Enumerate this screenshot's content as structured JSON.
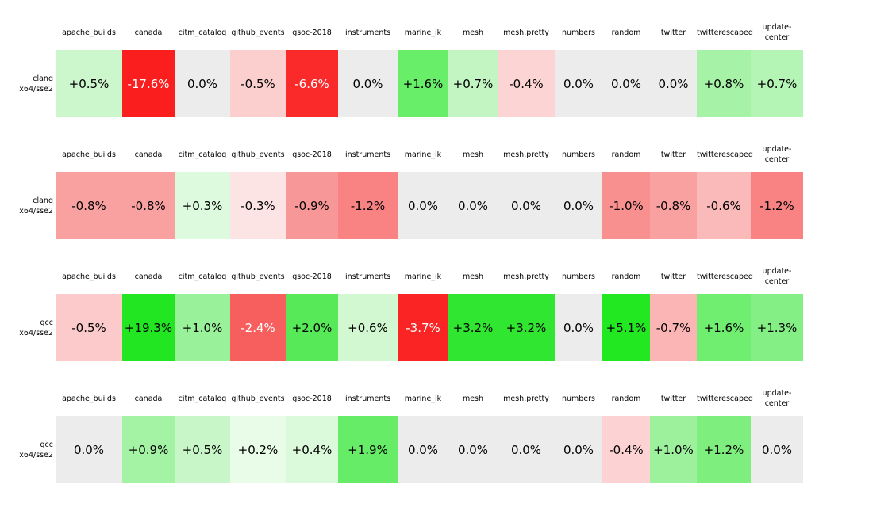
{
  "palette": {
    "background": "#ffffff",
    "zero_cell": "#ececec",
    "text_dark": "#000000",
    "text_light": "#ffffff",
    "max_negative": "#fb1e1e",
    "max_positive": "#22e622"
  },
  "columns_display": [
    "apache_builds",
    "canada",
    "citm_catalog",
    "github_events",
    "gsoc-2018",
    "instruments",
    "marine_ik",
    "mesh",
    "mesh.pretty",
    "numbers",
    "random",
    "twitter",
    "twitterescaped",
    "update-\ncenter"
  ],
  "chart_data": {
    "type": "heatmap",
    "columns": [
      "apache_builds",
      "canada",
      "citm_catalog",
      "github_events",
      "gsoc-2018",
      "instruments",
      "marine_ik",
      "mesh",
      "mesh.pretty",
      "numbers",
      "random",
      "twitter",
      "twitterescaped",
      "update-center"
    ],
    "rows": [
      "clang x64/sse2",
      "clang x64/sse2",
      "gcc x64/sse2",
      "gcc x64/sse2"
    ],
    "values_pct": [
      [
        0.5,
        -17.6,
        0.0,
        -0.5,
        -6.6,
        0.0,
        1.6,
        0.7,
        -0.4,
        0.0,
        0.0,
        0.0,
        0.8,
        0.7
      ],
      [
        -0.8,
        -0.8,
        0.3,
        -0.3,
        -0.9,
        -1.2,
        0.0,
        0.0,
        0.0,
        0.0,
        -1.0,
        -0.8,
        -0.6,
        -1.2
      ],
      [
        -0.5,
        19.3,
        1.0,
        -2.4,
        2.0,
        0.6,
        -3.7,
        3.2,
        3.2,
        0.0,
        5.1,
        -0.7,
        1.6,
        1.3
      ],
      [
        0.0,
        0.9,
        0.5,
        0.2,
        0.4,
        1.9,
        0.0,
        0.0,
        0.0,
        0.0,
        -0.4,
        1.0,
        1.2,
        0.0
      ]
    ],
    "colormap": "diverging red (negative) / gray (zero) / green (positive), per-row intensity",
    "legend": "none",
    "grid": false
  },
  "blocks": [
    {
      "row_label": "clang\nx64/sse2",
      "cells": [
        {
          "text": "+0.5%",
          "bg": "#ccf6cc",
          "fg": "#000000"
        },
        {
          "text": "-17.6%",
          "bg": "#fb1e1e",
          "fg": "#ffffff"
        },
        {
          "text": "0.0%",
          "bg": "#ececec",
          "fg": "#000000"
        },
        {
          "text": "-0.5%",
          "bg": "#fccfcf",
          "fg": "#000000"
        },
        {
          "text": "-6.6%",
          "bg": "#fb2a2a",
          "fg": "#ffffff"
        },
        {
          "text": "0.0%",
          "bg": "#ececec",
          "fg": "#000000"
        },
        {
          "text": "+1.6%",
          "bg": "#68ee68",
          "fg": "#000000"
        },
        {
          "text": "+0.7%",
          "bg": "#c2f5c2",
          "fg": "#000000"
        },
        {
          "text": "-0.4%",
          "bg": "#fcd4d4",
          "fg": "#000000"
        },
        {
          "text": "0.0%",
          "bg": "#ececec",
          "fg": "#000000"
        },
        {
          "text": "0.0%",
          "bg": "#ececec",
          "fg": "#000000"
        },
        {
          "text": "0.0%",
          "bg": "#ececec",
          "fg": "#000000"
        },
        {
          "text": "+0.8%",
          "bg": "#a6f2a6",
          "fg": "#000000"
        },
        {
          "text": "+0.7%",
          "bg": "#b4f4b4",
          "fg": "#000000"
        }
      ]
    },
    {
      "row_label": "clang\nx64/sse2",
      "cells": [
        {
          "text": "-0.8%",
          "bg": "#f9a0a0",
          "fg": "#000000"
        },
        {
          "text": "-0.8%",
          "bg": "#f9a0a0",
          "fg": "#000000"
        },
        {
          "text": "+0.3%",
          "bg": "#defade",
          "fg": "#000000"
        },
        {
          "text": "-0.3%",
          "bg": "#fde4e4",
          "fg": "#000000"
        },
        {
          "text": "-0.9%",
          "bg": "#f89797",
          "fg": "#000000"
        },
        {
          "text": "-1.2%",
          "bg": "#f98383",
          "fg": "#000000"
        },
        {
          "text": "0.0%",
          "bg": "#ececec",
          "fg": "#000000"
        },
        {
          "text": "0.0%",
          "bg": "#ececec",
          "fg": "#000000"
        },
        {
          "text": "0.0%",
          "bg": "#ececec",
          "fg": "#000000"
        },
        {
          "text": "0.0%",
          "bg": "#ececec",
          "fg": "#000000"
        },
        {
          "text": "-1.0%",
          "bg": "#f89090",
          "fg": "#000000"
        },
        {
          "text": "-0.8%",
          "bg": "#f9a0a0",
          "fg": "#000000"
        },
        {
          "text": "-0.6%",
          "bg": "#fbbaba",
          "fg": "#000000"
        },
        {
          "text": "-1.2%",
          "bg": "#f98383",
          "fg": "#000000"
        }
      ]
    },
    {
      "row_label": "gcc\nx64/sse2",
      "cells": [
        {
          "text": "-0.5%",
          "bg": "#fccaca",
          "fg": "#000000"
        },
        {
          "text": "+19.3%",
          "bg": "#22e622",
          "fg": "#000000"
        },
        {
          "text": "+1.0%",
          "bg": "#99f199",
          "fg": "#000000"
        },
        {
          "text": "-2.4%",
          "bg": "#f75f5f",
          "fg": "#ffffff"
        },
        {
          "text": "+2.0%",
          "bg": "#57e957",
          "fg": "#000000"
        },
        {
          "text": "+0.6%",
          "bg": "#d2f8d2",
          "fg": "#000000"
        },
        {
          "text": "-3.7%",
          "bg": "#fb2424",
          "fg": "#ffffff"
        },
        {
          "text": "+3.2%",
          "bg": "#30e630",
          "fg": "#000000"
        },
        {
          "text": "+3.2%",
          "bg": "#30e630",
          "fg": "#000000"
        },
        {
          "text": "0.0%",
          "bg": "#ececec",
          "fg": "#000000"
        },
        {
          "text": "+5.1%",
          "bg": "#22e822",
          "fg": "#000000"
        },
        {
          "text": "-0.7%",
          "bg": "#fbb5b5",
          "fg": "#000000"
        },
        {
          "text": "+1.6%",
          "bg": "#70ee70",
          "fg": "#000000"
        },
        {
          "text": "+1.3%",
          "bg": "#84ef84",
          "fg": "#000000"
        }
      ]
    },
    {
      "row_label": "gcc\nx64/sse2",
      "cells": [
        {
          "text": "0.0%",
          "bg": "#ececec",
          "fg": "#000000"
        },
        {
          "text": "+0.9%",
          "bg": "#a4f2a4",
          "fg": "#000000"
        },
        {
          "text": "+0.5%",
          "bg": "#c9f6c9",
          "fg": "#000000"
        },
        {
          "text": "+0.2%",
          "bg": "#e8fce8",
          "fg": "#000000"
        },
        {
          "text": "+0.4%",
          "bg": "#dbfadb",
          "fg": "#000000"
        },
        {
          "text": "+1.9%",
          "bg": "#66ec66",
          "fg": "#000000"
        },
        {
          "text": "0.0%",
          "bg": "#ececec",
          "fg": "#000000"
        },
        {
          "text": "0.0%",
          "bg": "#ececec",
          "fg": "#000000"
        },
        {
          "text": "0.0%",
          "bg": "#ececec",
          "fg": "#000000"
        },
        {
          "text": "0.0%",
          "bg": "#ececec",
          "fg": "#000000"
        },
        {
          "text": "-0.4%",
          "bg": "#fdd2d2",
          "fg": "#000000"
        },
        {
          "text": "+1.0%",
          "bg": "#9df19d",
          "fg": "#000000"
        },
        {
          "text": "+1.2%",
          "bg": "#7eee7e",
          "fg": "#000000"
        },
        {
          "text": "0.0%",
          "bg": "#ececec",
          "fg": "#000000"
        }
      ]
    }
  ]
}
